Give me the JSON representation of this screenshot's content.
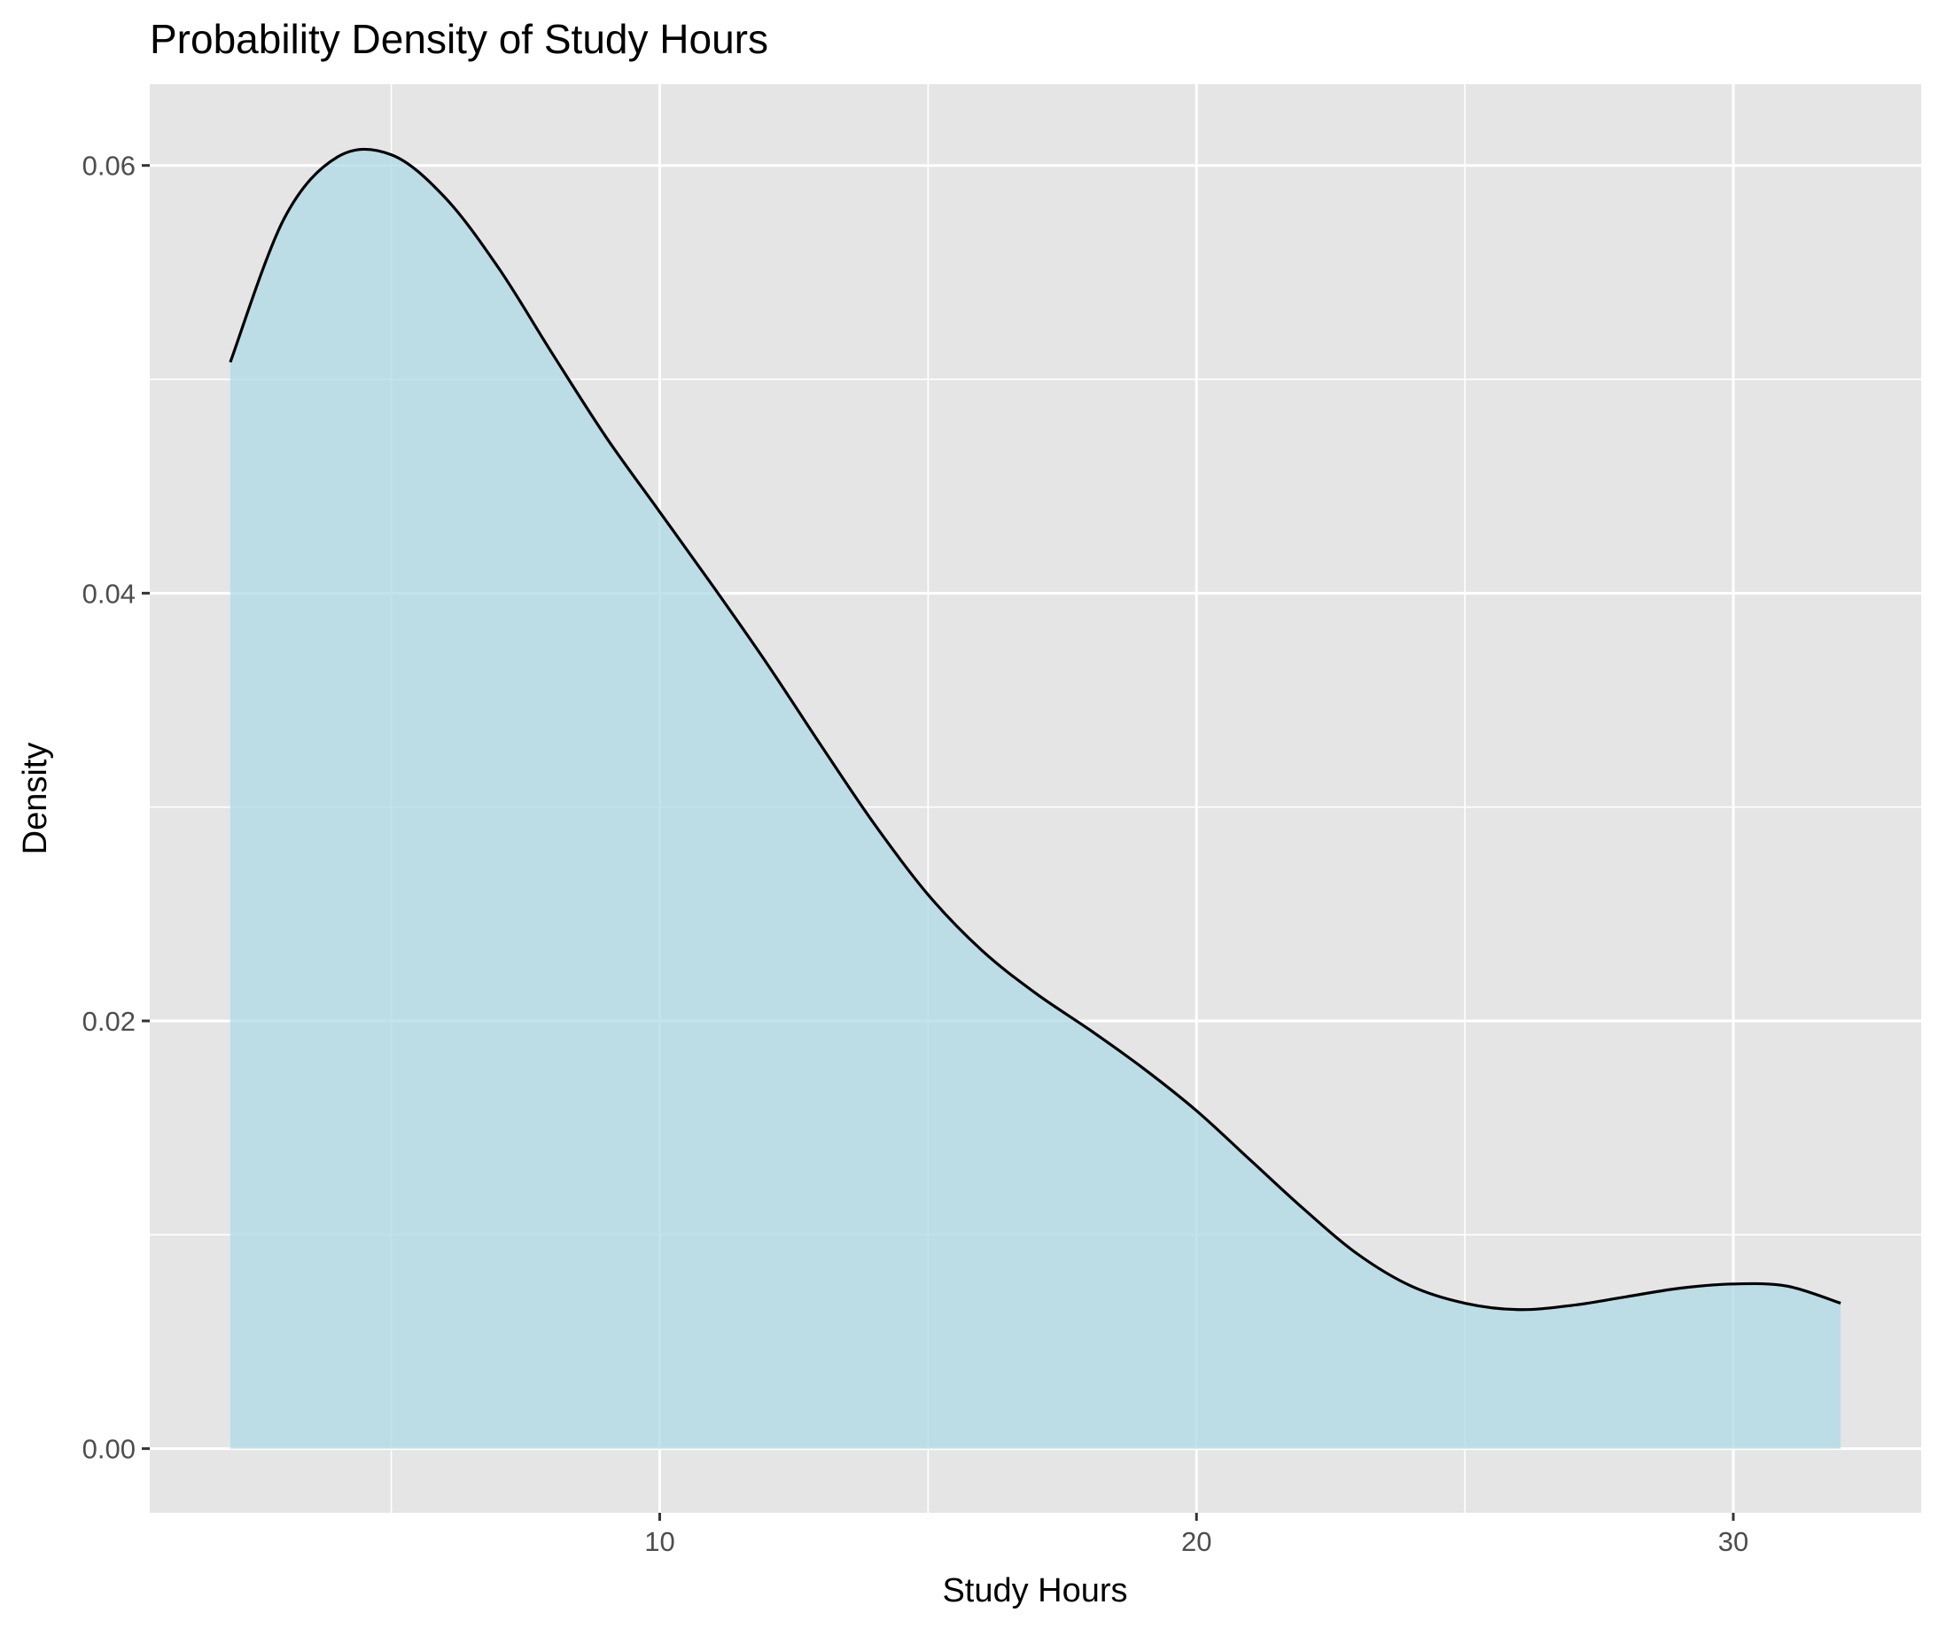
{
  "chart_data": {
    "type": "area",
    "title": "Probability Density of Study Hours",
    "xlabel": "Study Hours",
    "ylabel": "Density",
    "xlim": [
      0.5,
      33.5
    ],
    "ylim": [
      -0.003,
      0.0638
    ],
    "xticks": [
      10,
      20,
      30
    ],
    "xtick_labels": [
      "10",
      "20",
      "30"
    ],
    "xminor": [
      5,
      15,
      25
    ],
    "yticks": [
      0.0,
      0.02,
      0.04,
      0.06
    ],
    "ytick_labels": [
      "0.00",
      "0.02",
      "0.04",
      "0.06"
    ],
    "yminor": [
      0.01,
      0.03,
      0.05
    ],
    "grid": true,
    "legend": "none",
    "colors": {
      "fill": "#ADD8E6",
      "fill_opacity": 0.75,
      "line": "#000000",
      "panel": "#E5E5E5",
      "grid": "#FFFFFF"
    },
    "series": [
      {
        "x": [
          2,
          3,
          4,
          5,
          6,
          7,
          8,
          9,
          10,
          11,
          12,
          13,
          14,
          15,
          16,
          17,
          18,
          19,
          20,
          21,
          22,
          23,
          24,
          25,
          26,
          27,
          28,
          29,
          30,
          31,
          32
        ],
        "y": [
          0.0508,
          0.0575,
          0.0604,
          0.0605,
          0.0585,
          0.0552,
          0.0512,
          0.0473,
          0.0438,
          0.0403,
          0.0367,
          0.0329,
          0.0292,
          0.0259,
          0.0233,
          0.0213,
          0.0196,
          0.0178,
          0.0158,
          0.0135,
          0.0112,
          0.0091,
          0.0076,
          0.0068,
          0.0065,
          0.0067,
          0.0071,
          0.0075,
          0.0077,
          0.0076,
          0.0068
        ]
      }
    ]
  }
}
